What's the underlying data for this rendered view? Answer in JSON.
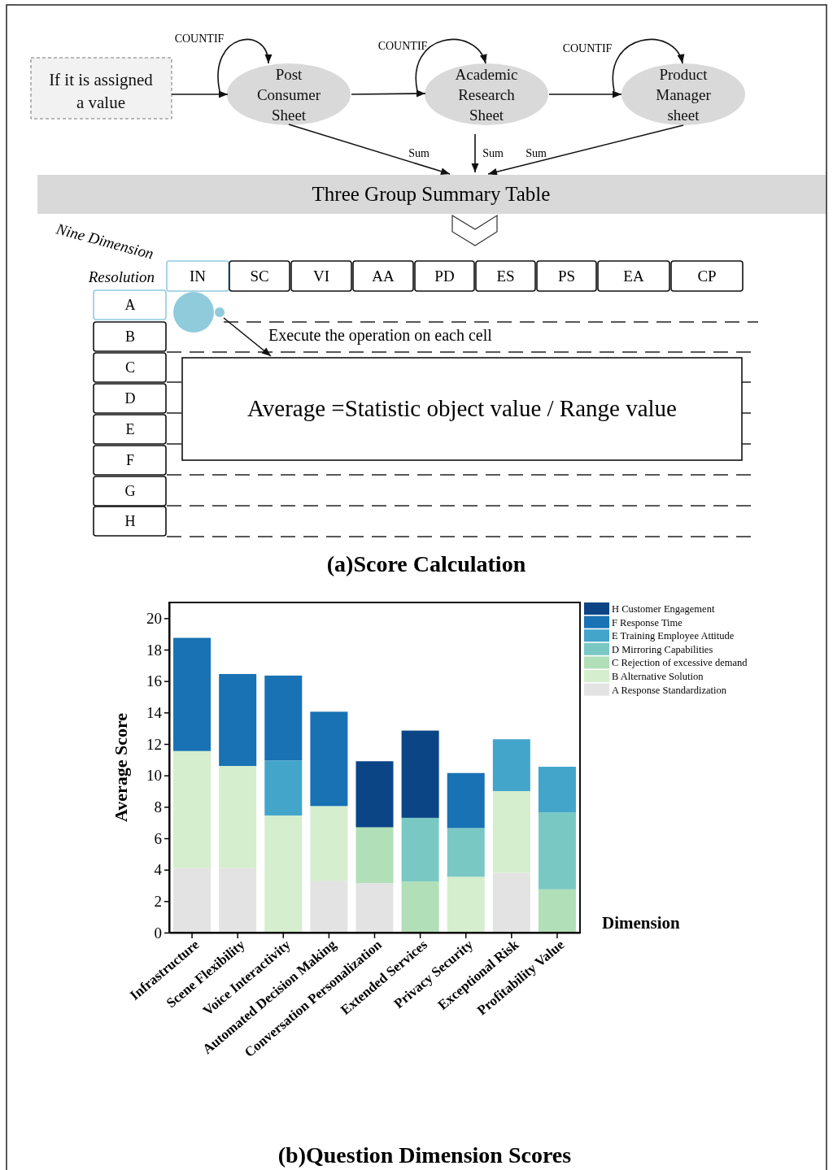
{
  "chart_data": [
    {
      "type": "other",
      "title": "(a)Score Calculation",
      "annotations": [
        "If it is assigned\na value",
        "Post\nConsumer\nSheet",
        "Academic\nResearch\nSheet",
        "Product\nManager\nsheet",
        "COUNTIF",
        "COUNTIF",
        "COUNTIF",
        "Sum",
        "Sum",
        "Sum",
        "Three Group Summary Table",
        "Nine Dimension",
        "Resolution",
        "IN",
        "SC",
        "VI",
        "AA",
        "PD",
        "ES",
        "PS",
        "EA",
        "CP",
        "A",
        "B",
        "C",
        "D",
        "E",
        "F",
        "G",
        "H",
        "Execute the operation on each cell",
        "Average =Statistic object value / Range value"
      ]
    },
    {
      "type": "bar",
      "title": "(b)Question Dimension Scores",
      "xlabel": "Dimension",
      "ylabel": "Average  Score",
      "stacked": true,
      "legend": "right",
      "ylim": [
        0,
        21
      ],
      "yticks": [
        0,
        2,
        4,
        6,
        8,
        10,
        12,
        14,
        16,
        18,
        20
      ],
      "categories": [
        "Infrastructure",
        "Scene Flexibility",
        "Voice Interactivity",
        "Automated Decision Making",
        "Conversation Personalization",
        "Extended Services",
        "Privacy Security",
        "Exceptional Risk",
        "Profitability Value"
      ],
      "series": [
        {
          "name": "A Response Standardization",
          "color": "#e3e3e3",
          "values": [
            4.1,
            4.1,
            null,
            3.3,
            3.15,
            null,
            null,
            3.8,
            null
          ]
        },
        {
          "name": "B Alternative Solution",
          "color": "#d5eece",
          "values": [
            7.45,
            6.5,
            7.45,
            4.75,
            null,
            null,
            3.55,
            5.2,
            null
          ]
        },
        {
          "name": "C Rejection of excessive demand",
          "color": "#b1dfb8",
          "values": [
            null,
            null,
            null,
            null,
            3.55,
            3.25,
            null,
            null,
            2.75
          ]
        },
        {
          "name": "D Mirroring Capabilities",
          "color": "#7ac8c4",
          "values": [
            null,
            null,
            null,
            null,
            null,
            4.05,
            3.1,
            null,
            4.9
          ]
        },
        {
          "name": "E Training Employee Attitude",
          "color": "#44a5cb",
          "values": [
            null,
            null,
            3.5,
            null,
            null,
            null,
            null,
            3.3,
            2.9
          ]
        },
        {
          "name": "F Response Time",
          "color": "#1872b3",
          "values": [
            7.2,
            5.85,
            5.4,
            6.0,
            null,
            null,
            3.5,
            null,
            null
          ]
        },
        {
          "name": "H Customer Engagement",
          "color": "#0b4586",
          "values": [
            null,
            null,
            null,
            null,
            4.2,
            5.55,
            null,
            null,
            null
          ]
        }
      ]
    }
  ]
}
